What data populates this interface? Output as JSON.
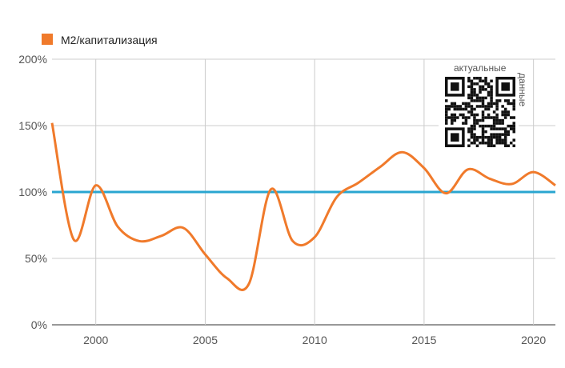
{
  "chart_data": {
    "type": "line",
    "title": "",
    "xlabel": "",
    "ylabel": "",
    "xlim": [
      1998,
      2021
    ],
    "ylim": [
      0,
      200
    ],
    "x_ticks": [
      2000,
      2005,
      2010,
      2015,
      2020
    ],
    "y_ticks": [
      0,
      50,
      100,
      150,
      200
    ],
    "y_tick_suffix": "%",
    "grid": true,
    "legend_position": "top-left",
    "series": [
      {
        "name": "M2/капитализация",
        "color": "#f07a2b",
        "x": [
          1998,
          1999,
          2000,
          2001,
          2002,
          2003,
          2004,
          2005,
          2006,
          2007,
          2008,
          2009,
          2010,
          2011,
          2012,
          2013,
          2014,
          2015,
          2016,
          2017,
          2018,
          2019,
          2020,
          2021
        ],
        "values": [
          152,
          64,
          105,
          74,
          63,
          67,
          73,
          53,
          35,
          31,
          102,
          63,
          66,
          96,
          107,
          119,
          130,
          118,
          99,
          117,
          110,
          106,
          115,
          105
        ]
      }
    ],
    "reference_line": {
      "value": 100,
      "color": "#2aa6d0"
    }
  },
  "qr": {
    "label_line1": "актуальные",
    "label_line2": "данные",
    "icon": "qr-code-icon"
  }
}
